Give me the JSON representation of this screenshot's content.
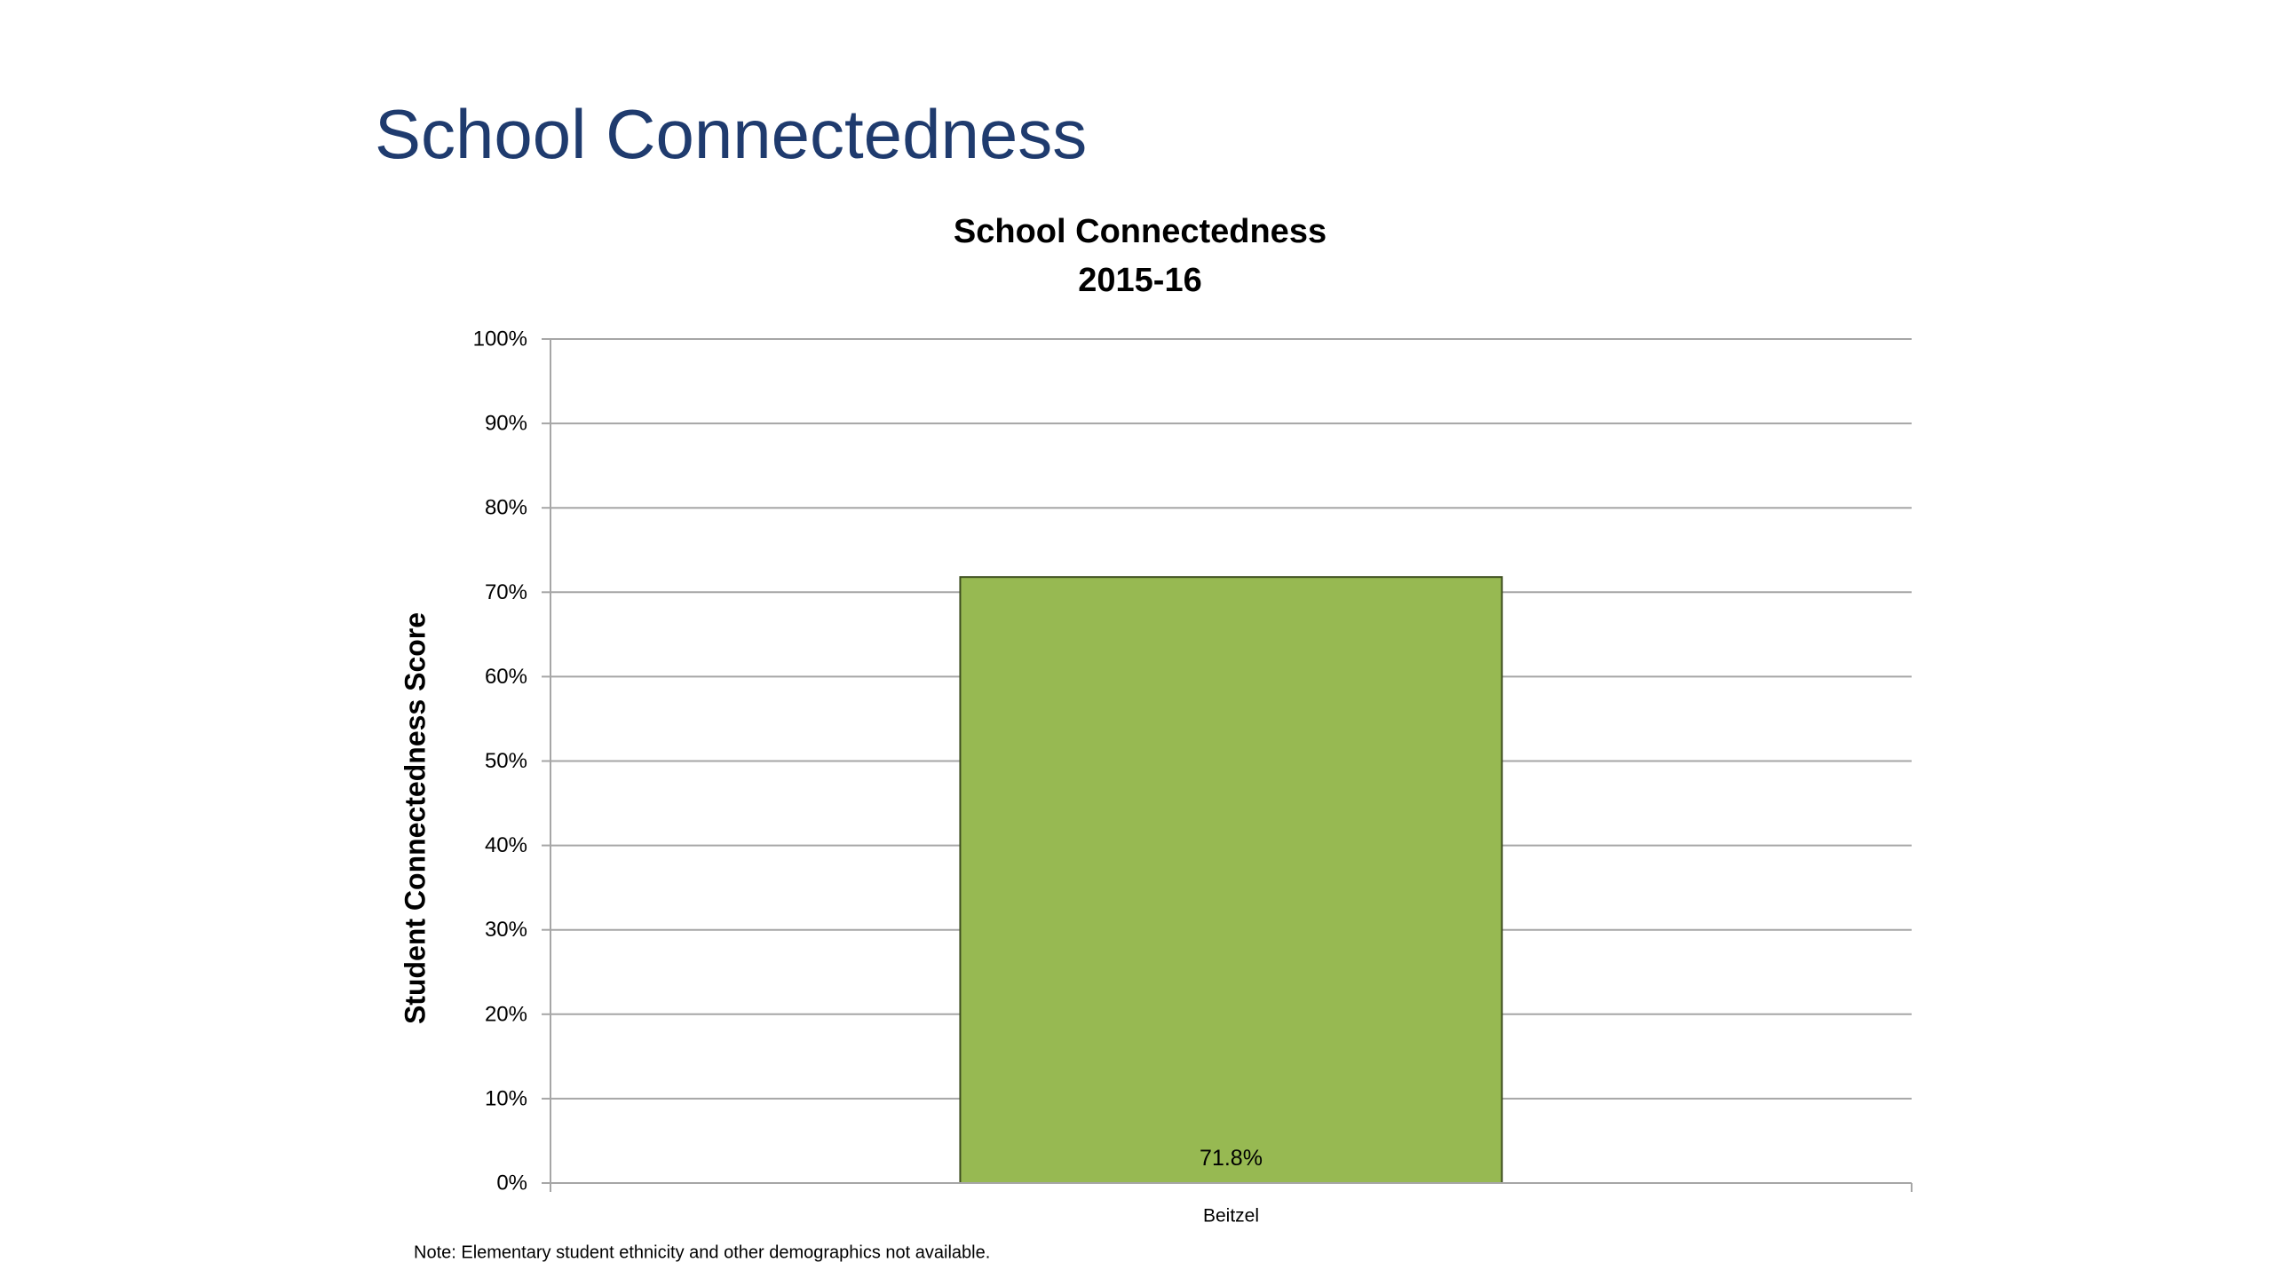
{
  "slide": {
    "title": "School Connectedness",
    "note": "Note:  Elementary student ethnicity and other demographics not available."
  },
  "chart_data": {
    "type": "bar",
    "title_lines": [
      "School Connectedness",
      "2015-16"
    ],
    "categories": [
      "Beitzel"
    ],
    "values": [
      71.8
    ],
    "value_labels": [
      "71.8%"
    ],
    "ylabel": "Student Connectedness Score",
    "xlabel": "",
    "ylim": [
      0,
      100
    ],
    "yticks": [
      0,
      10,
      20,
      30,
      40,
      50,
      60,
      70,
      80,
      90,
      100
    ],
    "ytick_labels": [
      "0%",
      "10%",
      "20%",
      "30%",
      "40%",
      "50%",
      "60%",
      "70%",
      "80%",
      "90%",
      "100%"
    ],
    "grid": true,
    "legend": "none",
    "colors": {
      "bar_fill": "#97b952",
      "bar_stroke": "#3d4d1e",
      "grid": "#a6a6a6",
      "title": "#1f3b6e"
    }
  }
}
